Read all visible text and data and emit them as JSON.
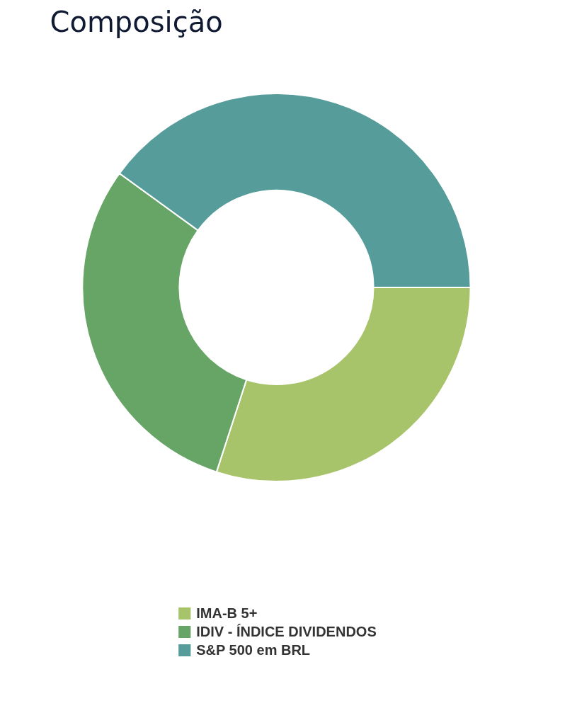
{
  "chart_data": {
    "type": "donut",
    "title": "Composição",
    "categories": [
      "IMA-B 5+",
      "IDIV - ÍNDICE DIVIDENDOS",
      "S&P 500 em BRL"
    ],
    "values": [
      30,
      30,
      40
    ],
    "colors": [
      "#a8c46a",
      "#67a567",
      "#559c9a"
    ],
    "legend": "bottom"
  }
}
